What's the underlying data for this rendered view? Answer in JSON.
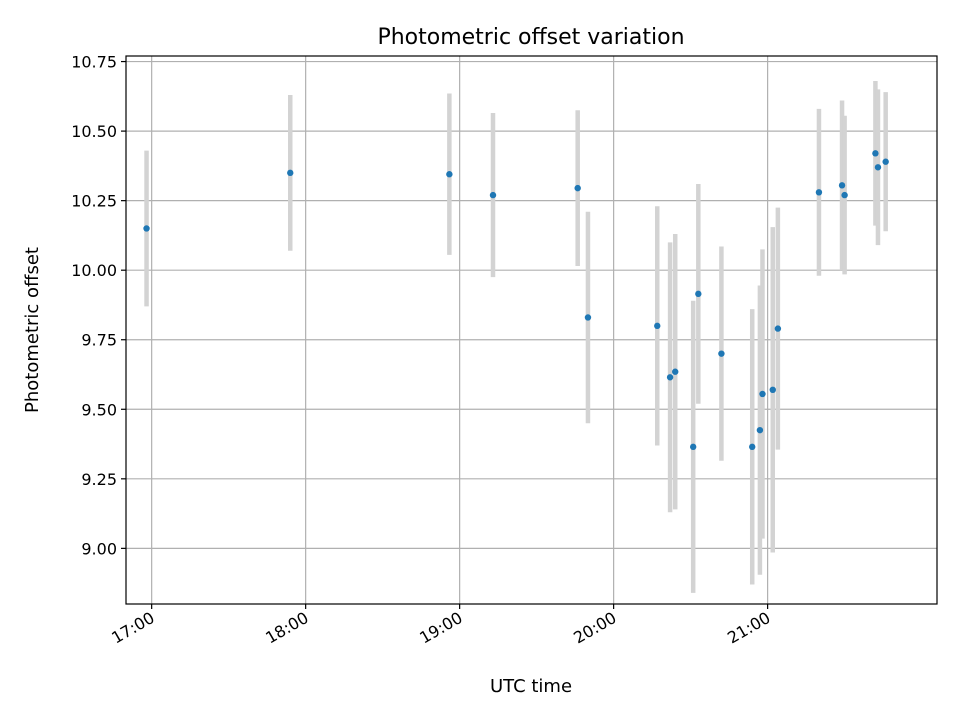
{
  "chart_data": {
    "type": "scatter",
    "title": "Photometric offset variation",
    "xlabel": "UTC time",
    "ylabel": "Photometric offset",
    "x_axis_kind": "time",
    "xlim": [
      "16:50",
      "22:06"
    ],
    "ylim": [
      8.8,
      10.77
    ],
    "grid": true,
    "xticks": [
      "17:00",
      "18:00",
      "19:00",
      "20:00",
      "21:00"
    ],
    "yticks": [
      "9.00",
      "9.25",
      "9.50",
      "9.75",
      "10.00",
      "10.25",
      "10.50",
      "10.75"
    ],
    "series": [
      {
        "marker_color": "#1f77b4",
        "errorbar_color": "#d3d3d3",
        "points": [
          {
            "t": "16:58",
            "y": 10.15,
            "err": 0.28
          },
          {
            "t": "17:54",
            "y": 10.35,
            "err": 0.28
          },
          {
            "t": "18:56",
            "y": 10.345,
            "err": 0.29
          },
          {
            "t": "19:13",
            "y": 10.27,
            "err": 0.295
          },
          {
            "t": "19:46",
            "y": 10.295,
            "err": 0.28
          },
          {
            "t": "19:50",
            "y": 9.83,
            "err": 0.38
          },
          {
            "t": "20:17",
            "y": 9.8,
            "err": 0.43
          },
          {
            "t": "20:22",
            "y": 9.615,
            "err": 0.485
          },
          {
            "t": "20:24",
            "y": 9.635,
            "err": 0.495
          },
          {
            "t": "20:31",
            "y": 9.365,
            "err": 0.525
          },
          {
            "t": "20:33",
            "y": 9.915,
            "err": 0.395
          },
          {
            "t": "20:42",
            "y": 9.7,
            "err": 0.385
          },
          {
            "t": "20:54",
            "y": 9.365,
            "err": 0.495
          },
          {
            "t": "20:57",
            "y": 9.425,
            "err": 0.52
          },
          {
            "t": "20:58",
            "y": 9.555,
            "err": 0.52
          },
          {
            "t": "21:02",
            "y": 9.57,
            "err": 0.585
          },
          {
            "t": "21:04",
            "y": 9.79,
            "err": 0.435
          },
          {
            "t": "21:20",
            "y": 10.28,
            "err": 0.3
          },
          {
            "t": "21:29",
            "y": 10.305,
            "err": 0.305
          },
          {
            "t": "21:30",
            "y": 10.27,
            "err": 0.285
          },
          {
            "t": "21:42",
            "y": 10.42,
            "err": 0.26
          },
          {
            "t": "21:43",
            "y": 10.37,
            "err": 0.28
          },
          {
            "t": "21:46",
            "y": 10.39,
            "err": 0.25
          }
        ]
      }
    ]
  }
}
